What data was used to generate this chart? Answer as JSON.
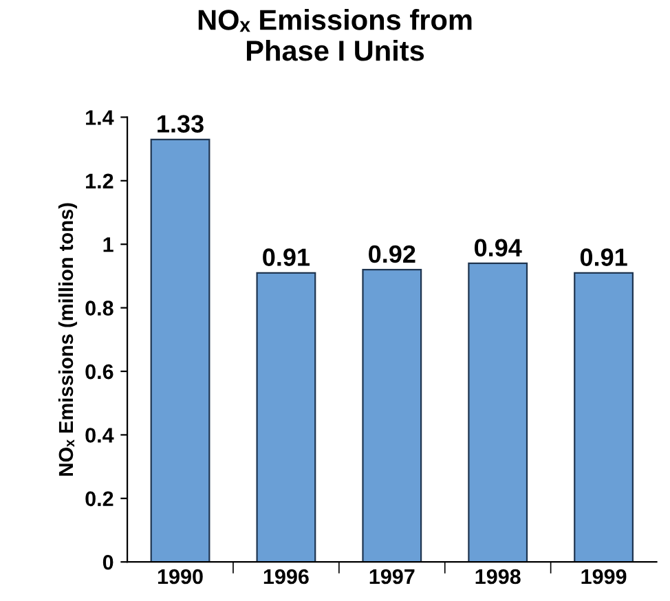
{
  "chart_data": {
    "type": "bar",
    "title": "NOₓ Emissions from\nPhase I Units",
    "ylabel": "NOₓ Emissions (million tons)",
    "categories": [
      "1990",
      "1996",
      "1997",
      "1998",
      "1999"
    ],
    "values": [
      1.33,
      0.91,
      0.92,
      0.94,
      0.91
    ],
    "color": "#6a9fd6",
    "ylim": [
      0,
      1.4
    ],
    "yticks": [
      0,
      0.2,
      0.4,
      0.6,
      0.8,
      1,
      1.2,
      1.4
    ],
    "data_labels": true,
    "grid": false,
    "legend": false
  }
}
